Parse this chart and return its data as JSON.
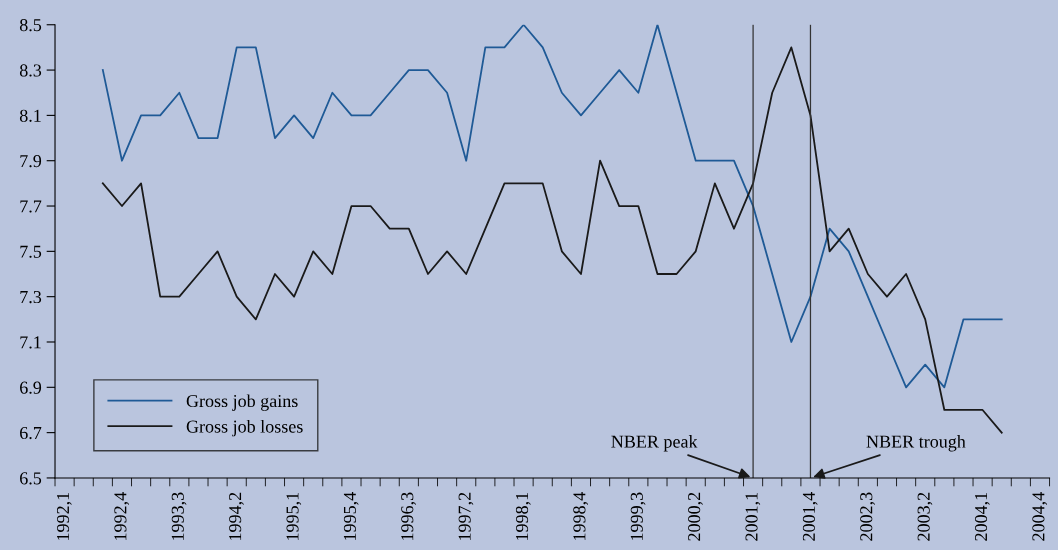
{
  "chart_data": {
    "type": "line",
    "categories": [
      "1992,1",
      null,
      null,
      "1992,4",
      null,
      null,
      "1993,3",
      null,
      null,
      "1994,2",
      null,
      null,
      "1995,1",
      null,
      null,
      "1995,4",
      null,
      null,
      "1996,3",
      null,
      null,
      "1997,2",
      null,
      null,
      "1998,1",
      null,
      null,
      "1998,4",
      null,
      null,
      "1999,3",
      null,
      null,
      "2000,2",
      null,
      null,
      "2001,1",
      null,
      null,
      "2001,4",
      null,
      null,
      "2002,3",
      null,
      null,
      "2003,2",
      null,
      null,
      "2004,1",
      null,
      null,
      "2004,4"
    ],
    "series": [
      {
        "name": "Gross job gains",
        "color": "#1f5a96",
        "values": [
          null,
          null,
          8.3,
          7.9,
          8.1,
          8.1,
          8.2,
          8.0,
          8.0,
          8.4,
          8.4,
          8.0,
          8.1,
          8.0,
          8.2,
          8.1,
          8.1,
          8.2,
          8.3,
          8.3,
          8.2,
          7.9,
          8.4,
          8.4,
          8.5,
          8.4,
          8.2,
          8.1,
          8.2,
          8.3,
          8.2,
          8.5,
          8.2,
          7.9,
          7.9,
          7.9,
          7.7,
          7.4,
          7.1,
          7.3,
          7.6,
          7.5,
          7.3,
          7.1,
          6.9,
          7.0,
          6.9,
          7.2,
          7.2,
          7.2,
          null,
          null
        ]
      },
      {
        "name": "Gross job losses",
        "color": "#1a1a1a",
        "values": [
          null,
          null,
          7.8,
          7.7,
          7.8,
          7.3,
          7.3,
          7.4,
          7.5,
          7.3,
          7.2,
          7.4,
          7.3,
          7.5,
          7.4,
          7.7,
          7.7,
          7.6,
          7.6,
          7.4,
          7.5,
          7.4,
          7.6,
          7.8,
          7.8,
          7.8,
          7.5,
          7.4,
          7.9,
          7.7,
          7.7,
          7.4,
          7.4,
          7.5,
          7.8,
          7.6,
          7.8,
          8.2,
          8.4,
          8.1,
          7.5,
          7.6,
          7.4,
          7.3,
          7.4,
          7.2,
          6.8,
          6.8,
          6.8,
          6.7,
          null,
          null
        ]
      }
    ],
    "ylim": [
      6.5,
      8.5
    ],
    "yticks": [
      6.5,
      6.7,
      6.9,
      7.1,
      7.3,
      7.5,
      7.7,
      7.9,
      8.1,
      8.3,
      8.5
    ],
    "ref_lines": [
      {
        "axis": "x",
        "value": "2001,1",
        "label": "NBER peak",
        "color": "#333333"
      },
      {
        "axis": "x",
        "value": "2001,4",
        "label": "NBER trough",
        "color": "#333333"
      }
    ],
    "legend": "bottom left",
    "grid": false,
    "marker": "none",
    "line_style": "solid"
  }
}
